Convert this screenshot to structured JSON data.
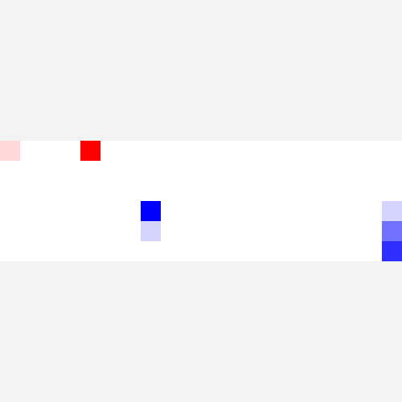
{
  "colors": {
    "background": "#f3f3f3",
    "board": "#ffffff"
  },
  "board": {
    "columns": 20,
    "rows": 6,
    "cells": [
      {
        "col": 0,
        "row": 0,
        "color": "#ffd8d8"
      },
      {
        "col": 4,
        "row": 0,
        "color": "#ff0000"
      },
      {
        "col": 7,
        "row": 3,
        "color": "#0000ff"
      },
      {
        "col": 7,
        "row": 4,
        "color": "#d4d4ff"
      },
      {
        "col": 19,
        "row": 3,
        "color": "#d4d4ff"
      },
      {
        "col": 19,
        "row": 4,
        "color": "#7171ff"
      },
      {
        "col": 19,
        "row": 5,
        "color": "#2e2eff"
      }
    ]
  }
}
